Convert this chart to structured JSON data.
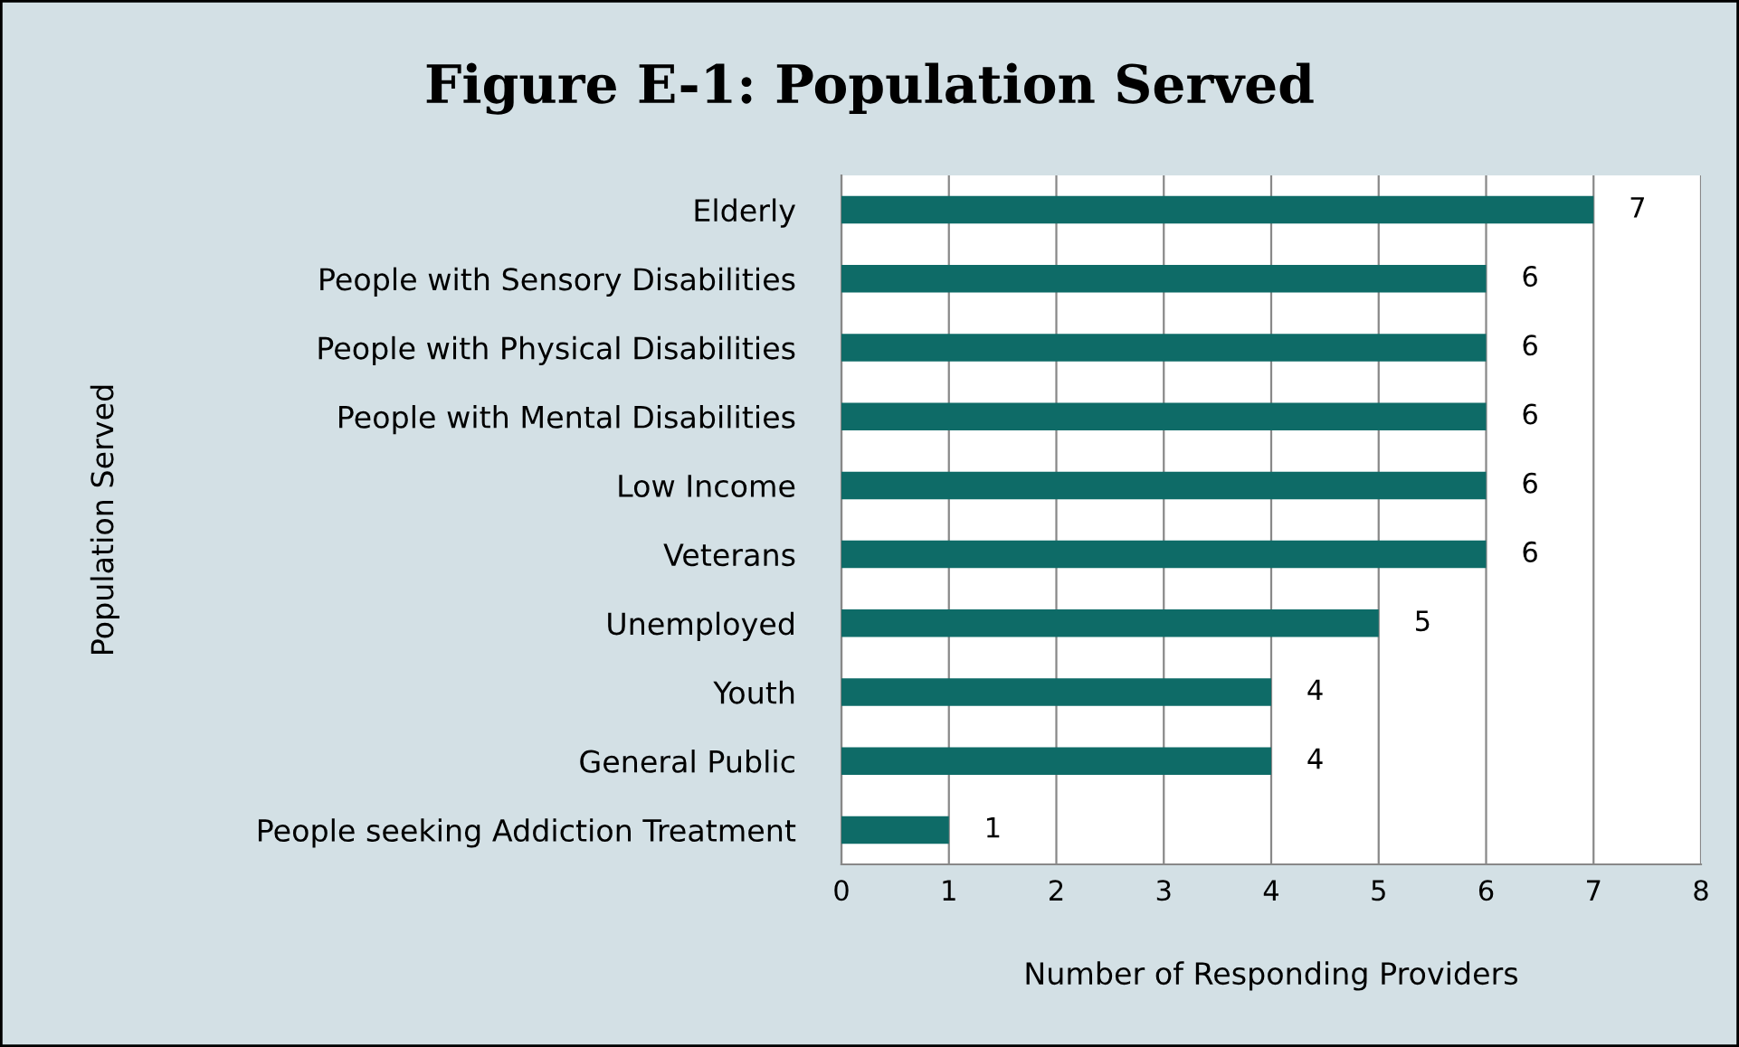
{
  "chart_data": {
    "type": "bar",
    "orientation": "horizontal",
    "title": "Figure E-1: Population Served",
    "xlabel": "Number of Responding Providers",
    "ylabel": "Population Served",
    "categories": [
      "Elderly",
      "People with Sensory Disabilities",
      "People with Physical Disabilities",
      "People with Mental Disabilities",
      "Low Income",
      "Veterans",
      "Unemployed",
      "Youth",
      "General Public",
      "People seeking Addiction Treatment"
    ],
    "values": [
      7,
      6,
      6,
      6,
      6,
      6,
      5,
      4,
      4,
      1
    ],
    "color": "#0e6b67",
    "xlim": [
      0,
      8
    ],
    "xticks": [
      0,
      1,
      2,
      3,
      4,
      5,
      6,
      7,
      8
    ],
    "grid": "x",
    "data_labels": true,
    "legend": false
  }
}
